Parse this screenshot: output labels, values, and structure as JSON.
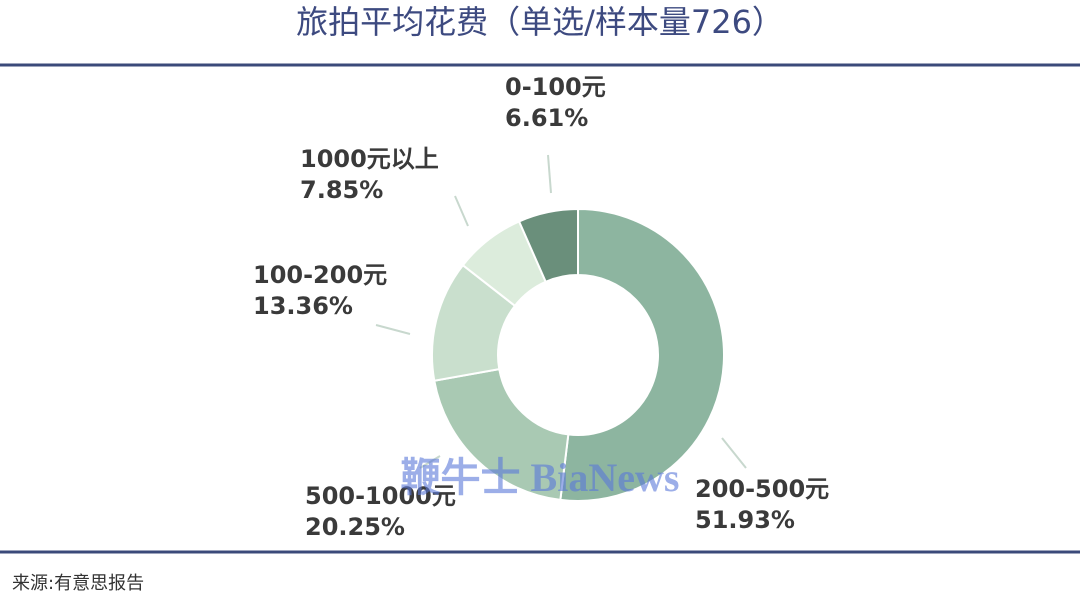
{
  "chart_data": {
    "type": "donut",
    "title": "旅拍平均花费（单选/样本量726）",
    "categories": [
      "200-500元",
      "500-1000元",
      "100-200元",
      "1000元以上",
      "0-100元"
    ],
    "values": [
      51.93,
      20.25,
      13.36,
      7.85,
      6.61
    ],
    "value_labels": [
      "51.93%",
      "20.25%",
      "13.36%",
      "7.85%",
      "6.61%"
    ],
    "colors": [
      "#8db5a0",
      "#a9c9b3",
      "#c9dfcd",
      "#dcecdc",
      "#6a8f7b"
    ],
    "source": "来源:有意思报告",
    "watermark": "鞭牛士 BiaNews"
  }
}
